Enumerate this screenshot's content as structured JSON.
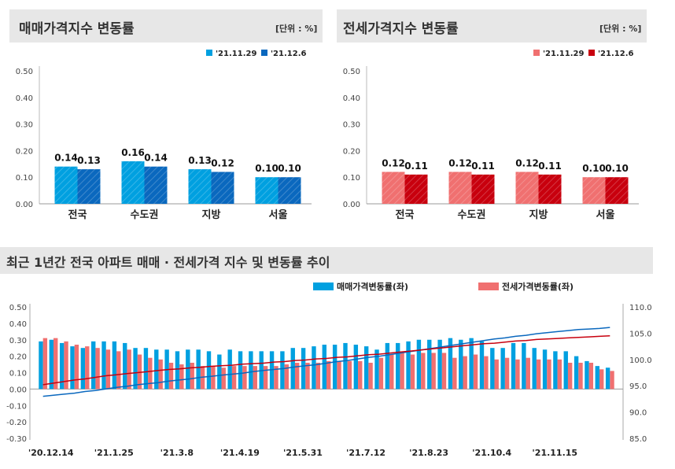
{
  "panels": [
    {
      "title": "매매가격지수 변동률",
      "unit": "[단위 : %]",
      "chart_data": {
        "type": "bar",
        "categories": [
          "전국",
          "수도권",
          "지방",
          "서울"
        ],
        "series": [
          {
            "name": "'21.11.29",
            "values": [
              0.14,
              0.16,
              0.13,
              0.1
            ],
            "color": "#00a0e0"
          },
          {
            "name": "'21.12.6",
            "values": [
              0.13,
              0.14,
              0.12,
              0.1
            ],
            "color": "#0a68be"
          }
        ],
        "ylim": [
          0,
          0.5
        ],
        "yticks": [
          "0.00",
          "0.10",
          "0.20",
          "0.30",
          "0.40",
          "0.50"
        ],
        "value_labels": [
          [
            "0.14",
            "0.16",
            "0.13",
            "0.10"
          ],
          [
            "0.13",
            "0.14",
            "0.12",
            "0.10"
          ]
        ]
      }
    },
    {
      "title": "전세가격지수 변동률",
      "unit": "[단위 : %]",
      "chart_data": {
        "type": "bar",
        "categories": [
          "전국",
          "수도권",
          "지방",
          "서울"
        ],
        "series": [
          {
            "name": "'21.11.29",
            "values": [
              0.12,
              0.12,
              0.12,
              0.1
            ],
            "color": "#f07070"
          },
          {
            "name": "'21.12.6",
            "values": [
              0.11,
              0.11,
              0.11,
              0.1
            ],
            "color": "#c8000e"
          }
        ],
        "ylim": [
          0,
          0.5
        ],
        "yticks": [
          "0.00",
          "0.10",
          "0.20",
          "0.30",
          "0.40",
          "0.50"
        ],
        "value_labels": [
          [
            "0.12",
            "0.12",
            "0.12",
            "0.10"
          ],
          [
            "0.11",
            "0.11",
            "0.11",
            "0.10"
          ]
        ]
      }
    }
  ],
  "trend": {
    "title": "최근 1년간 전국 아파트 매매 · 전세가격 지수 및 변동률 추이",
    "chart_data": {
      "type": "bar",
      "legend": [
        "매매가격변동률(좌)",
        "전세가격변동률(좌)"
      ],
      "colors": {
        "sale": "#00a0e0",
        "jeonse": "#f07070",
        "sale_index": "#0a68be",
        "jeonse_index": "#c8000e"
      },
      "x_tick_labels": [
        "'20.12.14",
        "'21.1.25",
        "'21.3.8",
        "'21.4.19",
        "'21.5.31",
        "'21.7.12",
        "'21.8.23",
        "'21.10.4",
        "'21.11.15"
      ],
      "y_left_ticks": [
        "0.50",
        "0.40",
        "0.30",
        "0.20",
        "0.10",
        "0.00",
        "-0.10",
        "-0.20",
        "-0.30"
      ],
      "y_right_ticks": [
        "110.0",
        "105.0",
        "100.0",
        "95.0",
        "90.0",
        "85.0"
      ],
      "ylim_left": [
        -0.3,
        0.5
      ],
      "ylim_right": [
        85,
        110
      ],
      "sale_change": [
        0.29,
        0.3,
        0.28,
        0.26,
        0.25,
        0.29,
        0.29,
        0.29,
        0.28,
        0.25,
        0.25,
        0.24,
        0.24,
        0.23,
        0.24,
        0.24,
        0.23,
        0.21,
        0.24,
        0.23,
        0.23,
        0.23,
        0.23,
        0.23,
        0.25,
        0.25,
        0.26,
        0.27,
        0.27,
        0.28,
        0.27,
        0.26,
        0.24,
        0.28,
        0.28,
        0.29,
        0.3,
        0.3,
        0.3,
        0.31,
        0.3,
        0.31,
        0.29,
        0.25,
        0.25,
        0.28,
        0.28,
        0.25,
        0.24,
        0.23,
        0.23,
        0.2,
        0.17,
        0.14,
        0.13
      ],
      "jeonse_change": [
        0.31,
        0.31,
        0.29,
        0.27,
        0.26,
        0.25,
        0.24,
        0.23,
        0.24,
        0.21,
        0.19,
        0.18,
        0.16,
        0.15,
        0.16,
        0.14,
        0.14,
        0.13,
        0.14,
        0.14,
        0.14,
        0.14,
        0.14,
        0.15,
        0.16,
        0.16,
        0.16,
        0.17,
        0.17,
        0.17,
        0.17,
        0.16,
        0.19,
        0.21,
        0.22,
        0.21,
        0.22,
        0.22,
        0.22,
        0.19,
        0.2,
        0.21,
        0.2,
        0.18,
        0.19,
        0.18,
        0.19,
        0.18,
        0.18,
        0.18,
        0.16,
        0.16,
        0.16,
        0.12,
        0.11
      ],
      "sale_index": [
        93.0,
        93.2,
        93.4,
        93.6,
        93.9,
        94.1,
        94.4,
        94.7,
        94.9,
        95.2,
        95.4,
        95.6,
        95.9,
        96.1,
        96.3,
        96.6,
        96.8,
        97.0,
        97.2,
        97.4,
        97.7,
        97.9,
        98.1,
        98.3,
        98.6,
        98.8,
        99.0,
        99.3,
        99.6,
        99.8,
        100.1,
        100.4,
        100.6,
        100.9,
        101.2,
        101.5,
        101.8,
        102.1,
        102.4,
        102.7,
        103.0,
        103.3,
        103.6,
        103.9,
        104.1,
        104.4,
        104.6,
        104.9,
        105.1,
        105.3,
        105.5,
        105.7,
        105.8,
        105.9,
        106.1
      ],
      "jeonse_index": [
        95.2,
        95.5,
        95.8,
        96.1,
        96.3,
        96.6,
        96.9,
        97.1,
        97.3,
        97.5,
        97.7,
        97.9,
        98.1,
        98.2,
        98.4,
        98.5,
        98.7,
        98.8,
        98.9,
        99.1,
        99.2,
        99.3,
        99.5,
        99.6,
        99.8,
        99.9,
        100.1,
        100.2,
        100.4,
        100.5,
        100.7,
        100.9,
        101.0,
        101.2,
        101.4,
        101.6,
        101.8,
        102.0,
        102.2,
        102.4,
        102.6,
        102.8,
        103.0,
        103.1,
        103.3,
        103.5,
        103.6,
        103.8,
        103.9,
        104.0,
        104.1,
        104.2,
        104.3,
        104.4,
        104.5
      ]
    }
  }
}
